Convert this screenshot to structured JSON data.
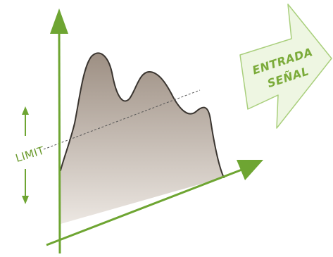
{
  "labels": {
    "limit": "LIMIT",
    "signal_line1": "ENTRADA",
    "signal_line2": "SEÑAL"
  },
  "colors": {
    "axis": "#6ea532",
    "limit_arrow": "#6ea532",
    "signal_arrow_fill": "#eef6e2",
    "signal_arrow_stroke": "#a9cf7c",
    "signal_text": "#7bab3a",
    "area_top": "#9d8f83",
    "area_bottom": "#ece7e2",
    "outline": "#3a3530",
    "threshold_line": "#555555"
  },
  "icons": {
    "limit_up": "arrow-up-icon",
    "limit_down": "arrow-down-icon",
    "signal_arrow": "block-arrow-right-icon"
  }
}
